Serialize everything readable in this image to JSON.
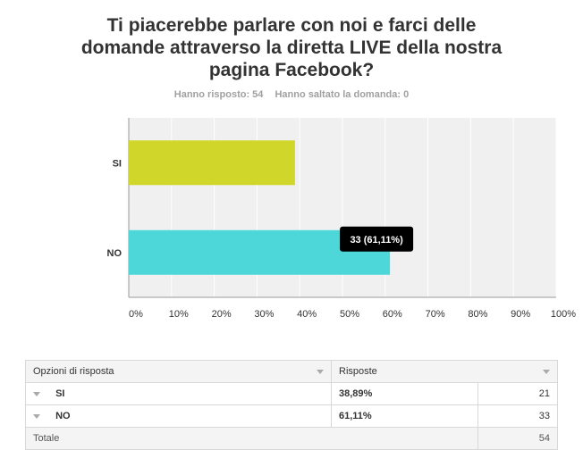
{
  "question": {
    "title": "Ti piacerebbe parlare con noi e farci delle domande attraverso la diretta LIVE della nostra pagina Facebook?",
    "answered": "Hanno risposto: 54",
    "skipped": "Hanno saltato la domanda: 0"
  },
  "chart_data": {
    "type": "bar",
    "orientation": "horizontal",
    "categories": [
      "SI",
      "NO"
    ],
    "series": [
      {
        "values": [
          38.89,
          61.11
        ]
      }
    ],
    "counts": [
      21,
      33
    ],
    "x_ticks": [
      "0%",
      "10%",
      "20%",
      "30%",
      "40%",
      "50%",
      "60%",
      "70%",
      "80%",
      "90%",
      "100%"
    ],
    "xlim": [
      0,
      100
    ],
    "grid": true,
    "bar_colors": [
      "#d0d72a",
      "#4dd7d9"
    ],
    "tooltip": {
      "category": "NO",
      "text": "33 (61,11%)"
    }
  },
  "table": {
    "headers": {
      "option": "Opzioni di risposta",
      "responses": "Risposte"
    },
    "rows": [
      {
        "option": "SI",
        "percent": "38,89%",
        "count": "21"
      },
      {
        "option": "NO",
        "percent": "61,11%",
        "count": "33"
      }
    ],
    "total": {
      "label": "Totale",
      "count": "54"
    }
  }
}
